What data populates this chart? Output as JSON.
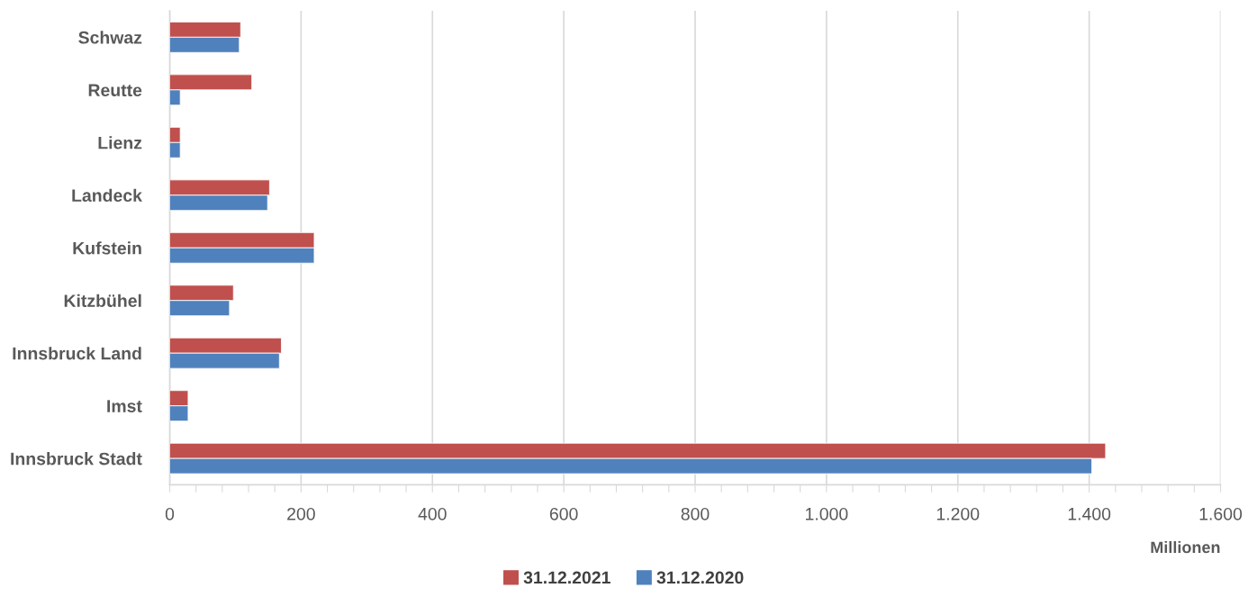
{
  "chart_data": {
    "type": "bar",
    "orientation": "horizontal",
    "xlabel": "Millionen",
    "categories": [
      "Schwaz",
      "Reutte",
      "Lienz",
      "Landeck",
      "Kufstein",
      "Kitzbühel",
      "Innsbruck Land",
      "Imst",
      "Innsbruck Stadt"
    ],
    "series": [
      {
        "name": "31.12.2021",
        "color": "#c0504d",
        "values": [
          108,
          125,
          16,
          152,
          220,
          97,
          170,
          28,
          1425
        ]
      },
      {
        "name": "31.12.2020",
        "color": "#4f81bd",
        "values": [
          106,
          16,
          16,
          149,
          220,
          91,
          167,
          28,
          1404
        ]
      }
    ],
    "xlim": [
      0,
      1600
    ],
    "xticks": [
      0,
      {
        "value": 40,
        "label": null
      },
      {
        "value": 80,
        "label": null
      },
      {
        "value": 120,
        "label": null
      },
      {
        "value": 160,
        "label": null
      },
      200,
      {
        "value": 240,
        "label": null
      },
      {
        "value": 280,
        "label": null
      },
      {
        "value": 320,
        "label": null
      },
      {
        "value": 360,
        "label": null
      },
      400,
      {
        "value": 440,
        "label": null
      },
      {
        "value": 480,
        "label": null
      },
      {
        "value": 520,
        "label": null
      },
      {
        "value": 560,
        "label": null
      },
      600,
      {
        "value": 640,
        "label": null
      },
      {
        "value": 680,
        "label": null
      },
      {
        "value": 720,
        "label": null
      },
      {
        "value": 760,
        "label": null
      },
      800,
      {
        "value": 840,
        "label": null
      },
      {
        "value": 880,
        "label": null
      },
      {
        "value": 920,
        "label": null
      },
      {
        "value": 960,
        "label": null
      },
      {
        "value": 1000,
        "label": "1.000"
      },
      {
        "value": 1040,
        "label": null
      },
      {
        "value": 1080,
        "label": null
      },
      {
        "value": 1120,
        "label": null
      },
      {
        "value": 1160,
        "label": null
      },
      {
        "value": 1200,
        "label": "1.200"
      },
      {
        "value": 1240,
        "label": null
      },
      {
        "value": 1280,
        "label": null
      },
      {
        "value": 1320,
        "label": null
      },
      {
        "value": 1360,
        "label": null
      },
      {
        "value": 1400,
        "label": "1.400"
      },
      {
        "value": 1440,
        "label": null
      },
      {
        "value": 1480,
        "label": null
      },
      {
        "value": 1520,
        "label": null
      },
      {
        "value": 1560,
        "label": null
      },
      {
        "value": 1600,
        "label": "1.600"
      }
    ],
    "grid": "x",
    "legend": "bottom"
  }
}
